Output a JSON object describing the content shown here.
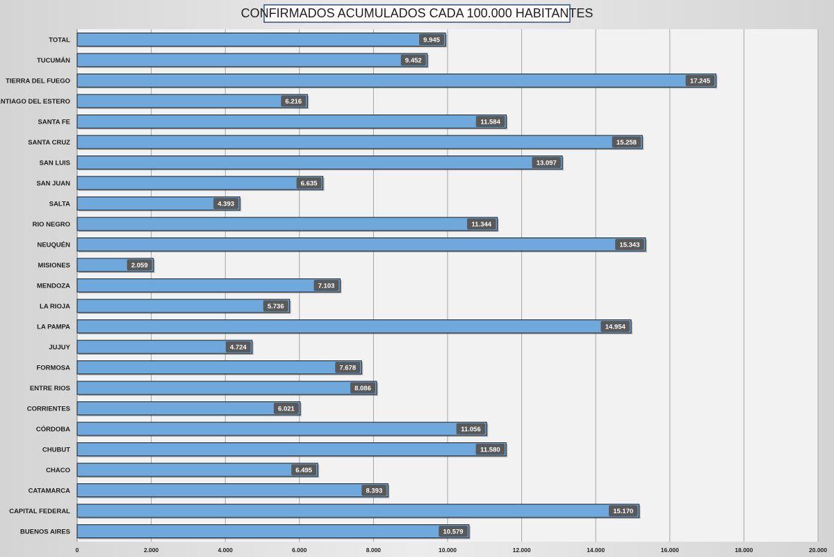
{
  "chart_data": {
    "type": "bar",
    "orientation": "horizontal",
    "title": "CONFIRMADOS ACUMULADOS CADA 100.000 HABITANTES",
    "categories": [
      "TOTAL",
      "TUCUMÁN",
      "TIERRA  DEL FUEGO",
      "SANTIAGO  DEL ESTERO",
      "SANTA  FE",
      "SANTA  CRUZ",
      "SAN  LUIS",
      "SAN  JUAN",
      "SALTA",
      "RIO  NEGRO",
      "NEUQUÉN",
      "MISIONES",
      "MENDOZA",
      "LA  RIOJA",
      "LA  PAMPA",
      "JUJUY",
      "FORMOSA",
      "ENTRE  RIOS",
      "CORRIENTES",
      "CÓRDOBA",
      "CHUBUT",
      "CHACO",
      "CATAMARCA",
      "CAPITAL  FEDERAL",
      "BUENOS  AIRES"
    ],
    "values": [
      9945,
      9452,
      17245,
      6216,
      11584,
      15258,
      13097,
      6635,
      4393,
      11344,
      15343,
      2059,
      7103,
      5736,
      14954,
      4724,
      7678,
      8086,
      6021,
      11056,
      11580,
      6495,
      8393,
      15170,
      10579
    ],
    "value_labels": [
      "9.945",
      "9.452",
      "17.245",
      "6.216",
      "11.584",
      "15.258",
      "13.097",
      "6.635",
      "4.393",
      "11.344",
      "15.343",
      "2.059",
      "7.103",
      "5.736",
      "14.954",
      "4.724",
      "7.678",
      "8.086",
      "6.021",
      "11.056",
      "11.580",
      "6.495",
      "8.393",
      "15.170",
      "10.579"
    ],
    "xlim": [
      0,
      20000
    ],
    "xticks": [
      0,
      2000,
      4000,
      6000,
      8000,
      10000,
      12000,
      14000,
      16000,
      18000,
      20000
    ],
    "xtick_labels": [
      "0",
      "2.000",
      "4.000",
      "6.000",
      "8.000",
      "10.000",
      "12.000",
      "14.000",
      "16.000",
      "18.000",
      "20.000"
    ],
    "xlabel": "",
    "ylabel": "",
    "grid": "vertical",
    "legend": "none",
    "colors": {
      "bar_fill": "#6fa8dc",
      "bar_stroke": "#1a1a1a",
      "value_badge": "#595959",
      "plot_bg": "#f2f2f2",
      "grid": "#a6a6a6",
      "title_border": "#2f4f7f"
    }
  }
}
